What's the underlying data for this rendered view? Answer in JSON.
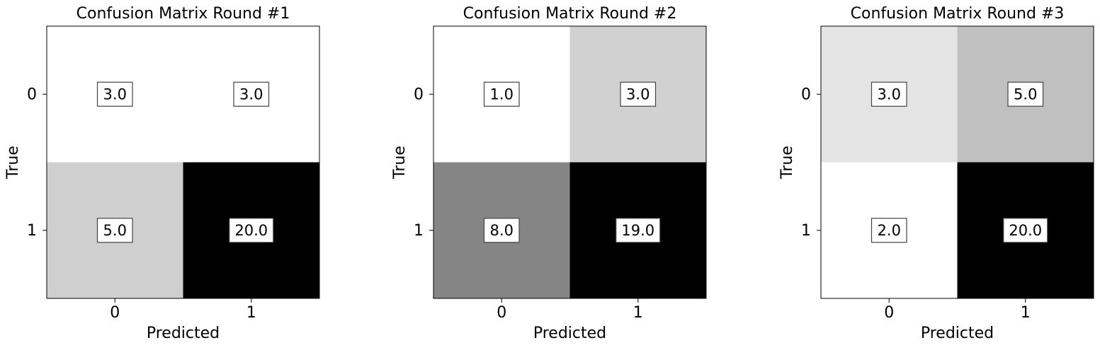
{
  "chart_data": [
    {
      "type": "heatmap",
      "title": "Confusion Matrix Round #1",
      "xlabel": "Predicted",
      "ylabel": "True",
      "x_ticks": [
        "0",
        "1"
      ],
      "y_ticks": [
        "0",
        "1"
      ],
      "values": [
        [
          3.0,
          3.0
        ],
        [
          5.0,
          20.0
        ]
      ],
      "value_labels": [
        [
          "3.0",
          "3.0"
        ],
        [
          "5.0",
          "20.0"
        ]
      ],
      "colormap": "Greys",
      "grid": false
    },
    {
      "type": "heatmap",
      "title": "Confusion Matrix Round #2",
      "xlabel": "Predicted",
      "ylabel": "True",
      "x_ticks": [
        "0",
        "1"
      ],
      "y_ticks": [
        "0",
        "1"
      ],
      "values": [
        [
          1.0,
          3.0
        ],
        [
          8.0,
          19.0
        ]
      ],
      "value_labels": [
        [
          "1.0",
          "3.0"
        ],
        [
          "8.0",
          "19.0"
        ]
      ],
      "colormap": "Greys",
      "grid": false
    },
    {
      "type": "heatmap",
      "title": "Confusion Matrix Round #3",
      "xlabel": "Predicted",
      "ylabel": "True",
      "x_ticks": [
        "0",
        "1"
      ],
      "y_ticks": [
        "0",
        "1"
      ],
      "values": [
        [
          3.0,
          5.0
        ],
        [
          2.0,
          20.0
        ]
      ],
      "value_labels": [
        [
          "3.0",
          "5.0"
        ],
        [
          "2.0",
          "20.0"
        ]
      ],
      "colormap": "Greys",
      "grid": false
    }
  ]
}
